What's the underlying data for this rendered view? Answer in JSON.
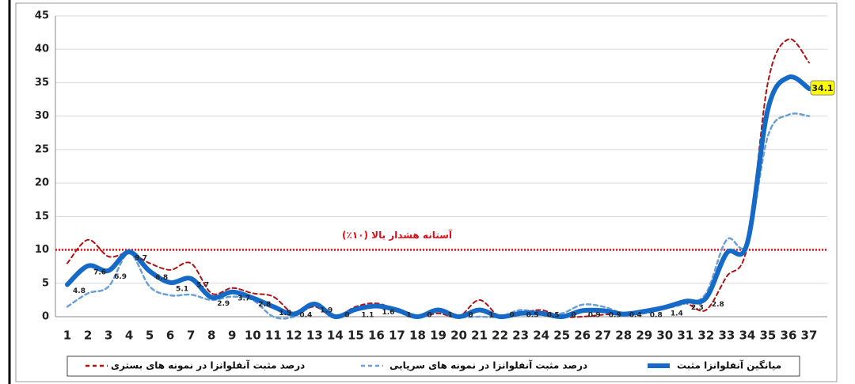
{
  "chart_data": {
    "type": "line",
    "categories": [
      "1",
      "2",
      "3",
      "4",
      "5",
      "6",
      "7",
      "8",
      "9",
      "10",
      "11",
      "12",
      "13",
      "14",
      "15",
      "16",
      "17",
      "18",
      "19",
      "20",
      "21",
      "22",
      "23",
      "24",
      "25",
      "26",
      "27",
      "28",
      "29",
      "30",
      "31",
      "32",
      "33",
      "34",
      "35",
      "36",
      "37"
    ],
    "series": [
      {
        "name": "درصد مثبت آنفلوانزا در نمونه های بستری",
        "color": "#b01010",
        "style": "dashed",
        "width": 2,
        "values": [
          8,
          11.5,
          9,
          9.5,
          8,
          7,
          8,
          3.5,
          4.3,
          3.5,
          3,
          0.5,
          1.5,
          0,
          1.5,
          2,
          1,
          0,
          0.5,
          0,
          2.5,
          0,
          0.5,
          1,
          0,
          0,
          0.3,
          0.5,
          1,
          1.5,
          2,
          1,
          6,
          10.5,
          35,
          41.5,
          38
        ]
      },
      {
        "name": "درصد مثبت آنفلوانزا در نمونه های سرپایی",
        "color": "#6a9fd8",
        "style": "dashed",
        "width": 2.5,
        "values": [
          1.5,
          3.5,
          4.5,
          9.5,
          4.5,
          3.2,
          3.3,
          2.5,
          3,
          2.5,
          0,
          0,
          2,
          0,
          1,
          1.5,
          0.8,
          0,
          1,
          0,
          0,
          0,
          1,
          0.5,
          0.5,
          1.8,
          1.5,
          0.5,
          0.5,
          1.2,
          2,
          3.5,
          11.5,
          11,
          27,
          30.2,
          30
        ]
      },
      {
        "name": "میانگین آنفلوانزا مثبت",
        "color": "#1569c7",
        "style": "solid",
        "width": 6,
        "values": [
          4.8,
          7.6,
          6.9,
          9.7,
          6.8,
          5.1,
          5.7,
          2.9,
          3.7,
          2.8,
          1.5,
          0.4,
          1.9,
          0,
          1.1,
          1.6,
          1,
          0,
          1,
          0,
          1,
          0,
          0.5,
          0.5,
          0,
          0.9,
          0.9,
          0.4,
          0.8,
          1.4,
          2.3,
          2.8,
          9.5,
          11,
          31,
          35.8,
          34.1
        ],
        "value_labels": [
          "4.8",
          "7.6",
          "6.9",
          "9.7",
          "6.8",
          "5.1",
          "5.7",
          "2.9",
          "3.7",
          "2.8",
          "1.5",
          "0.4",
          "1.9",
          "0",
          "1.1",
          "1.6",
          "1",
          "0",
          "1",
          "0",
          "1",
          "0",
          "0.5",
          "0.5",
          "0",
          "0.9",
          "0.9",
          "0.4",
          "0.8",
          "1.4",
          "2.3",
          "2.8",
          null,
          null,
          null,
          null,
          "34.1"
        ]
      }
    ],
    "threshold": {
      "value": 10,
      "label": "آستانه هشدار بالا (۱۰٪)",
      "color": "#e0101a"
    },
    "ylim": [
      0,
      45
    ],
    "yticks": [
      0,
      5,
      10,
      15,
      20,
      25,
      30,
      35,
      40,
      45
    ],
    "grid": true
  }
}
